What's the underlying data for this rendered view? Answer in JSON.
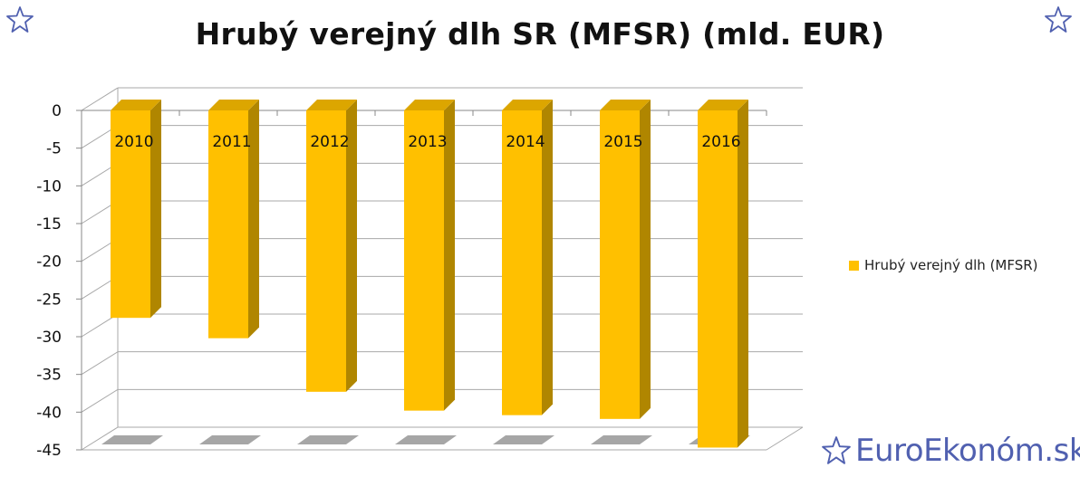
{
  "chart_data": {
    "type": "bar",
    "title": "Hrubý verejný dlh SR (MFSR) (mld. EUR)",
    "categories": [
      "2010",
      "2011",
      "2012",
      "2013",
      "2014",
      "2015",
      "2016"
    ],
    "series": [
      {
        "name": "Hrubý verejný dlh (MFSR)",
        "values": [
          -27.5,
          -30.2,
          -37.3,
          -39.8,
          -40.4,
          -40.9,
          -44.7
        ]
      }
    ],
    "y_ticks": [
      "0",
      "-5",
      "-10",
      "-15",
      "-20",
      "-25",
      "-30",
      "-35",
      "-40",
      "-45"
    ],
    "ylim": [
      -45,
      0
    ],
    "grid": true,
    "legend_position": "right",
    "bar_color": "#FFC000",
    "bar_side_color": "#B08600",
    "bar_top_color": "#DCA600"
  },
  "watermark": {
    "text": "EuroEkonóm.sk",
    "color": "#5060b0"
  },
  "decorations": {
    "corner_icon": "star-outline-icon",
    "color": "#5060b0"
  }
}
